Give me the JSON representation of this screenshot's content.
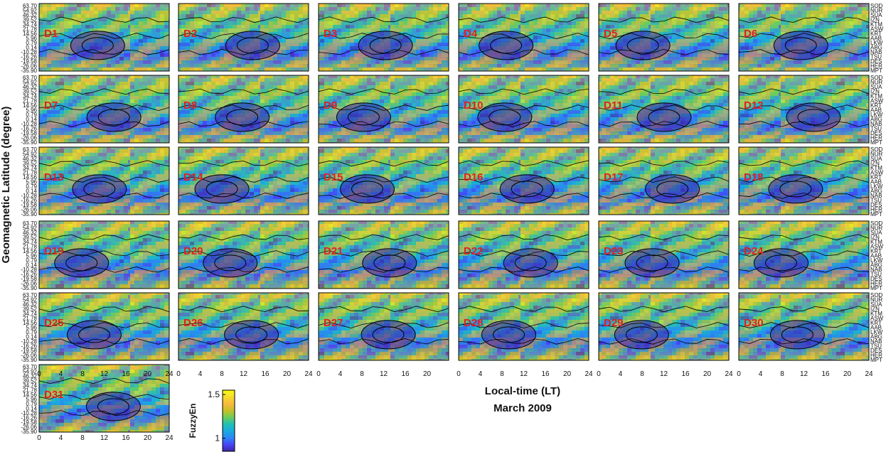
{
  "chart_data": {
    "type": "heatmap",
    "ylabel": "Geomagnetic Latitude (degree)",
    "xlabel": "Local-time (LT)",
    "subtitle": "March 2009",
    "x_ticks": [
      "0",
      "4",
      "8",
      "12",
      "16",
      "20",
      "24"
    ],
    "x_ticks_short": [
      "4",
      "8",
      "12",
      "16",
      "20"
    ],
    "xlim": [
      0,
      24
    ],
    "y_ticks": [
      "63.70",
      "54.92",
      "46.32",
      "39.52",
      "34.74",
      "21.78",
      "14.56",
      "5.96",
      "0.79",
      "0.14",
      "-10.28",
      "-16.26",
      "-19.58",
      "-26.06",
      "-35.90"
    ],
    "stations": [
      "SOD",
      "NUR",
      "SUA",
      "IZN",
      "KTM",
      "ASW",
      "KRT",
      "AAB",
      "LKW",
      "ABG",
      "NAB",
      "TSU",
      "DES",
      "HER",
      "MPT"
    ],
    "panels": [
      "D1",
      "D2",
      "D3",
      "D4",
      "D5",
      "D6",
      "D7",
      "D8",
      "D9",
      "D10",
      "D11",
      "D12",
      "D13",
      "D14",
      "D15",
      "D16",
      "D17",
      "D18",
      "D19",
      "D20",
      "D21",
      "D22",
      "D23",
      "D24",
      "D25",
      "D26",
      "D27",
      "D28",
      "D29",
      "D30",
      "D31"
    ],
    "colorbar": {
      "label": "FuzzyEn",
      "ticks": [
        "1",
        "1.5"
      ],
      "range": [
        0.85,
        1.55
      ],
      "colormap": "parula",
      "colors": [
        "#3e26a8",
        "#4743f8",
        "#2e87f7",
        "#1aaadf",
        "#20c0b4",
        "#6dcd59",
        "#c7c029",
        "#f9b93c",
        "#f5db2d",
        "#f9fb0e"
      ]
    }
  }
}
